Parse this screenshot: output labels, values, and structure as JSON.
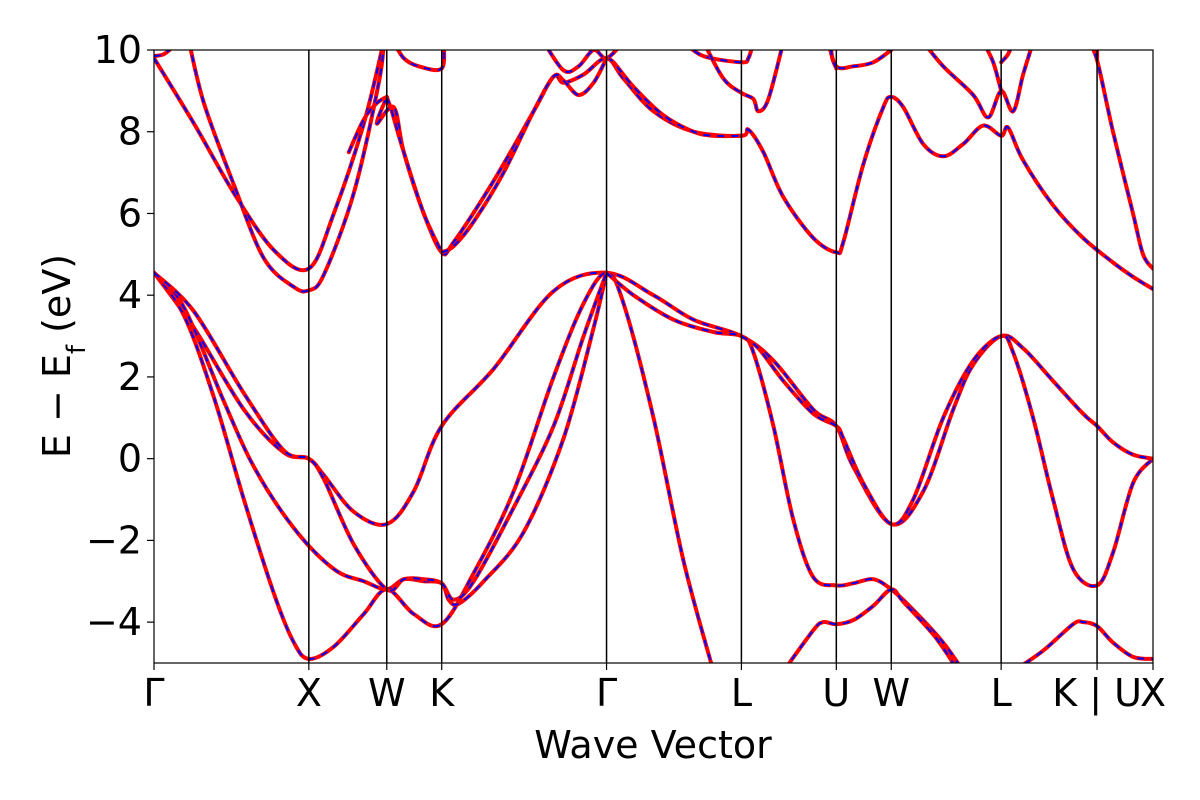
{
  "chart_data": {
    "type": "line",
    "xlabel": "Wave Vector",
    "ylabel": "E − E_f (eV)",
    "ylabel_main": "E − E",
    "ylabel_sub": "f",
    "ylabel_unit": " (eV)",
    "xlim": [
      0,
      100
    ],
    "ylim": [
      -5,
      10
    ],
    "yticks": [
      -4,
      -2,
      0,
      2,
      4,
      6,
      8,
      10
    ],
    "ytick_labels": [
      "−4",
      "−2",
      "0",
      "2",
      "4",
      "6",
      "8",
      "10"
    ],
    "kpoints": [
      {
        "x": 0,
        "label": "Γ"
      },
      {
        "x": 15.5,
        "label": "X"
      },
      {
        "x": 23.3,
        "label": "W"
      },
      {
        "x": 28.8,
        "label": "K"
      },
      {
        "x": 45.3,
        "label": "Γ"
      },
      {
        "x": 58.8,
        "label": "L"
      },
      {
        "x": 68.3,
        "label": "U"
      },
      {
        "x": 73.8,
        "label": "W"
      },
      {
        "x": 84.8,
        "label": "L"
      },
      {
        "x": 94.4,
        "label": "K | U"
      },
      {
        "x": 100,
        "label": "X"
      }
    ],
    "grid": false,
    "series_styles": [
      {
        "color": "#ff0000",
        "style": "solid"
      },
      {
        "color": "#0000ff",
        "style": "dashed"
      }
    ],
    "bands": [
      [
        [
          0,
          4.55
        ],
        [
          4,
          3.2
        ],
        [
          9,
          1.2
        ],
        [
          13,
          0.15
        ],
        [
          15.5,
          0
        ],
        [
          17,
          -0.4
        ],
        [
          20,
          -1.3
        ],
        [
          23.3,
          -1.6
        ],
        [
          26,
          -0.8
        ],
        [
          28.8,
          0.8
        ],
        [
          34,
          2.2
        ],
        [
          40,
          4.1
        ],
        [
          45.3,
          4.55
        ],
        [
          50,
          4.0
        ],
        [
          54,
          3.4
        ],
        [
          58.8,
          3.0
        ],
        [
          62,
          2.4
        ],
        [
          66,
          1.2
        ],
        [
          68.3,
          0.8
        ],
        [
          70,
          -0.2
        ],
        [
          73.8,
          -1.6
        ],
        [
          77,
          -0.8
        ],
        [
          80,
          1.2
        ],
        [
          82,
          2.3
        ],
        [
          84.8,
          3.0
        ],
        [
          87,
          2.7
        ],
        [
          90,
          1.9
        ],
        [
          93,
          1.1
        ],
        [
          94.4,
          0.8
        ],
        [
          96,
          0.4
        ],
        [
          98,
          0.1
        ],
        [
          100,
          0
        ]
      ],
      [
        [
          0,
          4.55
        ],
        [
          3,
          3.5
        ],
        [
          6,
          1.5
        ],
        [
          9,
          -1.0
        ],
        [
          12,
          -3.3
        ],
        [
          14,
          -4.5
        ],
        [
          15.5,
          -4.9
        ],
        [
          18,
          -4.6
        ],
        [
          21,
          -3.8
        ],
        [
          23.3,
          -3.2
        ],
        [
          26,
          -3.8
        ],
        [
          28.8,
          -4.05
        ],
        [
          32,
          -2.8
        ],
        [
          36,
          -0.8
        ],
        [
          40,
          2.0
        ],
        [
          43,
          3.8
        ],
        [
          45.3,
          4.55
        ],
        [
          47,
          3.8
        ],
        [
          50,
          1.0
        ],
        [
          53,
          -2.5
        ],
        [
          56,
          -5.2
        ]
      ],
      [
        [
          0,
          4.55
        ],
        [
          3,
          3.7
        ],
        [
          7,
          1.4
        ],
        [
          10,
          -0.2
        ],
        [
          14,
          -1.7
        ],
        [
          18,
          -2.7
        ],
        [
          21,
          -3.0
        ],
        [
          23.3,
          -3.2
        ],
        [
          25,
          -2.95
        ],
        [
          27,
          -3.0
        ],
        [
          28.8,
          -3.05
        ],
        [
          29.5,
          -3.45
        ],
        [
          30.5,
          -3.55
        ],
        [
          33,
          -3.0
        ],
        [
          37,
          -1.8
        ],
        [
          41,
          0.5
        ],
        [
          44,
          3.2
        ],
        [
          45.3,
          4.55
        ]
      ],
      [
        [
          0,
          4.55
        ],
        [
          4,
          3.6
        ],
        [
          9,
          1.6
        ],
        [
          13,
          0.2
        ],
        [
          15.5,
          0
        ],
        [
          17,
          -0.5
        ],
        [
          20,
          -2.1
        ],
        [
          23.3,
          -3.2
        ],
        [
          25,
          -2.95
        ],
        [
          27,
          -2.95
        ],
        [
          28.8,
          -3.05
        ],
        [
          30,
          -3.45
        ],
        [
          32,
          -3.0
        ],
        [
          36,
          -1.2
        ],
        [
          40,
          0.8
        ],
        [
          43,
          3.0
        ],
        [
          45.3,
          4.55
        ]
      ],
      [
        [
          45.3,
          4.55
        ],
        [
          48,
          4.0
        ],
        [
          52,
          3.4
        ],
        [
          56,
          3.1
        ],
        [
          58.8,
          3.0
        ],
        [
          60,
          2.6
        ],
        [
          62,
          0.8
        ],
        [
          64,
          -1.5
        ],
        [
          66,
          -2.9
        ],
        [
          68.3,
          -3.1
        ],
        [
          70,
          -3.05
        ],
        [
          72,
          -2.95
        ],
        [
          73.8,
          -3.2
        ],
        [
          76,
          -3.7
        ],
        [
          79,
          -4.5
        ],
        [
          81,
          -5.2
        ]
      ],
      [
        [
          58.8,
          3.0
        ],
        [
          60.5,
          2.7
        ],
        [
          63,
          1.9
        ],
        [
          66,
          1.1
        ],
        [
          68.3,
          0.8
        ],
        [
          69,
          0.5
        ],
        [
          71,
          -0.6
        ],
        [
          73.8,
          -1.6
        ],
        [
          76,
          -1.0
        ],
        [
          79,
          1.0
        ],
        [
          82,
          2.4
        ],
        [
          84.8,
          3.0
        ],
        [
          86,
          2.6
        ],
        [
          88,
          1.0
        ],
        [
          90,
          -1.0
        ],
        [
          92,
          -2.7
        ],
        [
          94.4,
          -3.1
        ],
        [
          96,
          -2.3
        ],
        [
          98,
          -0.6
        ],
        [
          100,
          0
        ]
      ],
      [
        [
          63,
          -5.2
        ],
        [
          66,
          -4.2
        ],
        [
          67,
          -4.0
        ],
        [
          68.3,
          -4.05
        ],
        [
          70,
          -3.95
        ],
        [
          72,
          -3.6
        ],
        [
          73.8,
          -3.2
        ],
        [
          75,
          -3.5
        ],
        [
          78,
          -4.3
        ],
        [
          80,
          -5.0
        ]
      ],
      [
        [
          86,
          -5.2
        ],
        [
          89,
          -4.7
        ],
        [
          92,
          -4.05
        ],
        [
          93,
          -4.0
        ],
        [
          94.4,
          -4.1
        ],
        [
          96,
          -4.5
        ],
        [
          98,
          -4.85
        ],
        [
          100,
          -4.9
        ]
      ],
      [
        [
          0,
          9.8
        ],
        [
          4,
          8.2
        ],
        [
          8,
          6.5
        ],
        [
          12,
          5.1
        ],
        [
          15.5,
          4.65
        ],
        [
          18,
          6.0
        ],
        [
          21,
          8.2
        ],
        [
          23,
          10.2
        ]
      ],
      [
        [
          3.5,
          10.2
        ],
        [
          5,
          8.7
        ],
        [
          8,
          6.7
        ],
        [
          11,
          4.9
        ],
        [
          14,
          4.2
        ],
        [
          15.5,
          4.12
        ],
        [
          17,
          4.5
        ],
        [
          20,
          6.5
        ],
        [
          22.5,
          9.2
        ],
        [
          23,
          10.2
        ]
      ],
      [
        [
          0,
          9.85
        ],
        [
          1,
          9.9
        ],
        [
          2,
          10.1
        ]
      ],
      [
        [
          23.3,
          8.85
        ],
        [
          22.3,
          8.2
        ],
        [
          24,
          8.6
        ],
        [
          25,
          7.5
        ],
        [
          27,
          6.0
        ],
        [
          28.8,
          5.05
        ],
        [
          30,
          5.3
        ],
        [
          34,
          6.8
        ],
        [
          38,
          8.5
        ],
        [
          40,
          9.35
        ],
        [
          41,
          9.2
        ],
        [
          43,
          9.4
        ],
        [
          45.3,
          9.8
        ],
        [
          47,
          9.3
        ],
        [
          50,
          8.5
        ],
        [
          54,
          8.0
        ],
        [
          58.8,
          7.9
        ],
        [
          59.5,
          8.05
        ],
        [
          61,
          7.5
        ],
        [
          63,
          6.4
        ],
        [
          66,
          5.4
        ],
        [
          68.3,
          5.05
        ],
        [
          69,
          5.3
        ],
        [
          71,
          7.2
        ],
        [
          73,
          8.6
        ],
        [
          73.8,
          8.85
        ],
        [
          75,
          8.6
        ],
        [
          77,
          7.7
        ],
        [
          79,
          7.4
        ],
        [
          81,
          7.7
        ],
        [
          83,
          8.15
        ],
        [
          84.8,
          7.9
        ],
        [
          85.5,
          8.1
        ],
        [
          87,
          7.3
        ],
        [
          90,
          6.2
        ],
        [
          93,
          5.4
        ],
        [
          96,
          4.8
        ],
        [
          98,
          4.45
        ],
        [
          100,
          4.15
        ]
      ],
      [
        [
          23.3,
          8.85
        ],
        [
          23.8,
          8.5
        ],
        [
          25,
          7.5
        ],
        [
          27,
          6.0
        ],
        [
          28.8,
          5.05
        ]
      ],
      [
        [
          19.5,
          7.5
        ],
        [
          21,
          8.3
        ],
        [
          22.3,
          8.7
        ],
        [
          23.3,
          8.85
        ]
      ],
      [
        [
          28.8,
          5.05
        ],
        [
          30,
          5.2
        ],
        [
          32,
          5.8
        ],
        [
          35,
          7.0
        ],
        [
          38,
          8.5
        ],
        [
          40,
          9.35
        ],
        [
          41,
          9.25
        ],
        [
          42.5,
          8.9
        ],
        [
          44,
          9.2
        ],
        [
          45.3,
          9.8
        ]
      ],
      [
        [
          45.3,
          9.8
        ],
        [
          46,
          9.7
        ],
        [
          48,
          9.1
        ],
        [
          51,
          8.4
        ],
        [
          54,
          8.0
        ],
        [
          56,
          7.9
        ],
        [
          58.8,
          7.9
        ]
      ],
      [
        [
          67.5,
          10.2
        ],
        [
          68.3,
          9.6
        ],
        [
          70,
          9.6
        ],
        [
          72,
          9.7
        ],
        [
          73.8,
          10.0
        ]
      ],
      [
        [
          77,
          10.2
        ],
        [
          79,
          9.6
        ],
        [
          82,
          8.9
        ],
        [
          83.5,
          8.35
        ],
        [
          84.8,
          9.0
        ],
        [
          86,
          8.5
        ],
        [
          87,
          9.4
        ],
        [
          88,
          10.2
        ]
      ],
      [
        [
          84.8,
          9.0
        ],
        [
          84,
          9.7
        ],
        [
          83,
          10.2
        ]
      ],
      [
        [
          84.8,
          9.7
        ],
        [
          85.5,
          9.9
        ],
        [
          86,
          10.2
        ]
      ],
      [
        [
          53,
          10.2
        ],
        [
          55,
          9.85
        ],
        [
          58.8,
          9.7
        ],
        [
          59.5,
          9.8
        ],
        [
          60,
          10.2
        ]
      ],
      [
        [
          55,
          10.2
        ],
        [
          57,
          9.3
        ],
        [
          58.8,
          8.95
        ],
        [
          60,
          8.8
        ],
        [
          60.5,
          8.5
        ],
        [
          61.5,
          8.8
        ],
        [
          63,
          10.2
        ]
      ],
      [
        [
          47,
          10.2
        ],
        [
          45.3,
          9.8
        ],
        [
          44,
          10.0
        ],
        [
          42.5,
          9.6
        ],
        [
          41,
          9.5
        ],
        [
          39,
          10.2
        ]
      ],
      [
        [
          24,
          10.2
        ],
        [
          25,
          9.8
        ],
        [
          26.5,
          9.6
        ],
        [
          28.8,
          9.55
        ],
        [
          29,
          10.2
        ]
      ],
      [
        [
          68.3,
          9.55
        ],
        [
          67.9,
          9.8
        ],
        [
          67.7,
          10.2
        ]
      ],
      [
        [
          94.4,
          9.8
        ],
        [
          94.4,
          10.2
        ]
      ],
      [
        [
          93.5,
          10.2
        ],
        [
          94.4,
          9.75
        ],
        [
          96,
          8.0
        ],
        [
          98,
          6.0
        ],
        [
          99,
          5.0
        ],
        [
          100,
          4.65
        ]
      ]
    ]
  }
}
